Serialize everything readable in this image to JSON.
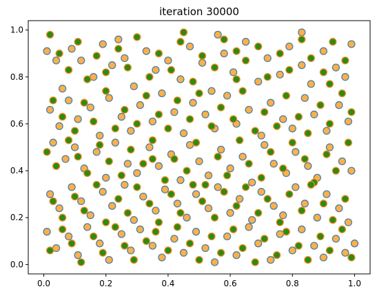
{
  "chart_data": {
    "type": "scatter",
    "title": "iteration 30000",
    "xlabel": "",
    "ylabel": "",
    "xlim": [
      -0.05,
      1.05
    ],
    "ylim": [
      -0.04,
      1.04
    ],
    "xticks": [
      0.0,
      0.2,
      0.4,
      0.6,
      0.8,
      1.0
    ],
    "yticks": [
      0.0,
      0.2,
      0.4,
      0.6,
      0.8,
      1.0
    ],
    "xtick_labels": [
      "0.0",
      "0.2",
      "0.4",
      "0.6",
      "0.8",
      "1.0"
    ],
    "ytick_labels": [
      "0.0",
      "0.2",
      "0.4",
      "0.6",
      "0.8",
      "1.0"
    ],
    "grid": false,
    "series": [
      {
        "marker_face": "#fbb04b",
        "marker_edge": "#4e7fa0",
        "points": [
          [
            0.01,
            0.91
          ],
          [
            0.04,
            0.87
          ],
          [
            0.06,
            0.75
          ],
          [
            0.09,
            0.92
          ],
          [
            0.12,
            0.87
          ],
          [
            0.16,
            0.8
          ],
          [
            0.19,
            0.94
          ],
          [
            0.22,
            0.85
          ],
          [
            0.26,
            0.88
          ],
          [
            0.29,
            0.76
          ],
          [
            0.33,
            0.91
          ],
          [
            0.36,
            0.83
          ],
          [
            0.4,
            0.87
          ],
          [
            0.44,
            0.79
          ],
          [
            0.47,
            0.93
          ],
          [
            0.51,
            0.86
          ],
          [
            0.54,
            0.74
          ],
          [
            0.58,
            0.9
          ],
          [
            0.61,
            0.82
          ],
          [
            0.65,
            0.95
          ],
          [
            0.69,
            0.78
          ],
          [
            0.72,
            0.88
          ],
          [
            0.76,
            0.81
          ],
          [
            0.79,
            0.93
          ],
          [
            0.83,
            0.85
          ],
          [
            0.86,
            0.77
          ],
          [
            0.9,
            0.91
          ],
          [
            0.94,
            0.84
          ],
          [
            0.97,
            0.8
          ],
          [
            0.99,
            0.94
          ],
          [
            0.02,
            0.66
          ],
          [
            0.05,
            0.59
          ],
          [
            0.08,
            0.7
          ],
          [
            0.11,
            0.62
          ],
          [
            0.15,
            0.67
          ],
          [
            0.18,
            0.55
          ],
          [
            0.21,
            0.71
          ],
          [
            0.25,
            0.63
          ],
          [
            0.28,
            0.57
          ],
          [
            0.31,
            0.68
          ],
          [
            0.35,
            0.61
          ],
          [
            0.38,
            0.73
          ],
          [
            0.42,
            0.65
          ],
          [
            0.45,
            0.56
          ],
          [
            0.48,
            0.69
          ],
          [
            0.52,
            0.64
          ],
          [
            0.55,
            0.58
          ],
          [
            0.59,
            0.72
          ],
          [
            0.62,
            0.6
          ],
          [
            0.66,
            0.66
          ],
          [
            0.7,
            0.55
          ],
          [
            0.73,
            0.69
          ],
          [
            0.77,
            0.62
          ],
          [
            0.8,
            0.58
          ],
          [
            0.84,
            0.71
          ],
          [
            0.87,
            0.64
          ],
          [
            0.91,
            0.57
          ],
          [
            0.95,
            0.68
          ],
          [
            0.98,
            0.61
          ],
          [
            0.03,
            0.52
          ],
          [
            0.07,
            0.45
          ],
          [
            0.1,
            0.5
          ],
          [
            0.13,
            0.41
          ],
          [
            0.17,
            0.48
          ],
          [
            0.2,
            0.37
          ],
          [
            0.23,
            0.52
          ],
          [
            0.27,
            0.43
          ],
          [
            0.3,
            0.39
          ],
          [
            0.34,
            0.5
          ],
          [
            0.37,
            0.42
          ],
          [
            0.41,
            0.47
          ],
          [
            0.44,
            0.36
          ],
          [
            0.47,
            0.51
          ],
          [
            0.5,
            0.44
          ],
          [
            0.53,
            0.38
          ],
          [
            0.57,
            0.49
          ],
          [
            0.6,
            0.41
          ],
          [
            0.64,
            0.46
          ],
          [
            0.67,
            0.35
          ],
          [
            0.71,
            0.51
          ],
          [
            0.74,
            0.43
          ],
          [
            0.78,
            0.39
          ],
          [
            0.81,
            0.48
          ],
          [
            0.85,
            0.42
          ],
          [
            0.88,
            0.37
          ],
          [
            0.92,
            0.5
          ],
          [
            0.96,
            0.44
          ],
          [
            0.99,
            0.4
          ],
          [
            0.02,
            0.3
          ],
          [
            0.05,
            0.24
          ],
          [
            0.09,
            0.33
          ],
          [
            0.12,
            0.27
          ],
          [
            0.15,
            0.21
          ],
          [
            0.19,
            0.31
          ],
          [
            0.22,
            0.25
          ],
          [
            0.26,
            0.34
          ],
          [
            0.29,
            0.19
          ],
          [
            0.32,
            0.29
          ],
          [
            0.36,
            0.23
          ],
          [
            0.39,
            0.32
          ],
          [
            0.43,
            0.26
          ],
          [
            0.46,
            0.2
          ],
          [
            0.49,
            0.3
          ],
          [
            0.53,
            0.24
          ],
          [
            0.56,
            0.33
          ],
          [
            0.6,
            0.22
          ],
          [
            0.63,
            0.28
          ],
          [
            0.67,
            0.19
          ],
          [
            0.7,
            0.31
          ],
          [
            0.74,
            0.25
          ],
          [
            0.77,
            0.21
          ],
          [
            0.81,
            0.33
          ],
          [
            0.84,
            0.26
          ],
          [
            0.88,
            0.2
          ],
          [
            0.91,
            0.3
          ],
          [
            0.95,
            0.24
          ],
          [
            0.98,
            0.18
          ],
          [
            0.01,
            0.14
          ],
          [
            0.04,
            0.07
          ],
          [
            0.08,
            0.12
          ],
          [
            0.11,
            0.04
          ],
          [
            0.14,
            0.16
          ],
          [
            0.18,
            0.09
          ],
          [
            0.21,
            0.02
          ],
          [
            0.25,
            0.13
          ],
          [
            0.28,
            0.06
          ],
          [
            0.31,
            0.15
          ],
          [
            0.35,
            0.08
          ],
          [
            0.38,
            0.03
          ],
          [
            0.42,
            0.11
          ],
          [
            0.45,
            0.05
          ],
          [
            0.49,
            0.14
          ],
          [
            0.52,
            0.07
          ],
          [
            0.55,
            0.01
          ],
          [
            0.59,
            0.12
          ],
          [
            0.62,
            0.04
          ],
          [
            0.66,
            0.16
          ],
          [
            0.69,
            0.09
          ],
          [
            0.73,
            0.02
          ],
          [
            0.76,
            0.13
          ],
          [
            0.8,
            0.06
          ],
          [
            0.83,
            0.15
          ],
          [
            0.87,
            0.08
          ],
          [
            0.9,
            0.03
          ],
          [
            0.94,
            0.11
          ],
          [
            0.97,
            0.05
          ],
          [
            1.0,
            0.09
          ],
          [
            0.24,
            0.96
          ],
          [
            0.56,
            0.98
          ],
          [
            0.83,
            0.99
          ]
        ]
      },
      {
        "marker_face": "#2e8b12",
        "marker_edge": "#f28c28",
        "points": [
          [
            0.02,
            0.98
          ],
          [
            0.05,
            0.9
          ],
          [
            0.08,
            0.83
          ],
          [
            0.11,
            0.95
          ],
          [
            0.14,
            0.79
          ],
          [
            0.17,
            0.89
          ],
          [
            0.2,
            0.82
          ],
          [
            0.24,
            0.92
          ],
          [
            0.27,
            0.84
          ],
          [
            0.3,
            0.97
          ],
          [
            0.34,
            0.8
          ],
          [
            0.37,
            0.9
          ],
          [
            0.41,
            0.83
          ],
          [
            0.44,
            0.95
          ],
          [
            0.48,
            0.78
          ],
          [
            0.51,
            0.89
          ],
          [
            0.55,
            0.84
          ],
          [
            0.58,
            0.96
          ],
          [
            0.62,
            0.79
          ],
          [
            0.65,
            0.87
          ],
          [
            0.69,
            0.93
          ],
          [
            0.72,
            0.8
          ],
          [
            0.76,
            0.9
          ],
          [
            0.79,
            0.83
          ],
          [
            0.83,
            0.96
          ],
          [
            0.86,
            0.88
          ],
          [
            0.9,
            0.82
          ],
          [
            0.93,
            0.95
          ],
          [
            0.97,
            0.87
          ],
          [
            0.03,
            0.7
          ],
          [
            0.06,
            0.63
          ],
          [
            0.1,
            0.57
          ],
          [
            0.13,
            0.69
          ],
          [
            0.16,
            0.61
          ],
          [
            0.2,
            0.74
          ],
          [
            0.23,
            0.58
          ],
          [
            0.26,
            0.66
          ],
          [
            0.3,
            0.6
          ],
          [
            0.33,
            0.72
          ],
          [
            0.37,
            0.64
          ],
          [
            0.4,
            0.58
          ],
          [
            0.43,
            0.7
          ],
          [
            0.47,
            0.62
          ],
          [
            0.5,
            0.73
          ],
          [
            0.54,
            0.59
          ],
          [
            0.57,
            0.67
          ],
          [
            0.61,
            0.62
          ],
          [
            0.64,
            0.74
          ],
          [
            0.68,
            0.57
          ],
          [
            0.71,
            0.65
          ],
          [
            0.75,
            0.59
          ],
          [
            0.78,
            0.72
          ],
          [
            0.82,
            0.63
          ],
          [
            0.85,
            0.56
          ],
          [
            0.89,
            0.68
          ],
          [
            0.92,
            0.6
          ],
          [
            0.96,
            0.73
          ],
          [
            0.99,
            0.65
          ],
          [
            0.01,
            0.48
          ],
          [
            0.04,
            0.42
          ],
          [
            0.08,
            0.53
          ],
          [
            0.11,
            0.46
          ],
          [
            0.14,
            0.39
          ],
          [
            0.18,
            0.51
          ],
          [
            0.21,
            0.44
          ],
          [
            0.25,
            0.38
          ],
          [
            0.28,
            0.49
          ],
          [
            0.32,
            0.43
          ],
          [
            0.35,
            0.53
          ],
          [
            0.39,
            0.36
          ],
          [
            0.42,
            0.45
          ],
          [
            0.46,
            0.4
          ],
          [
            0.49,
            0.52
          ],
          [
            0.52,
            0.34
          ],
          [
            0.56,
            0.46
          ],
          [
            0.59,
            0.38
          ],
          [
            0.63,
            0.53
          ],
          [
            0.66,
            0.43
          ],
          [
            0.7,
            0.37
          ],
          [
            0.73,
            0.48
          ],
          [
            0.77,
            0.41
          ],
          [
            0.8,
            0.52
          ],
          [
            0.84,
            0.45
          ],
          [
            0.87,
            0.35
          ],
          [
            0.91,
            0.47
          ],
          [
            0.94,
            0.4
          ],
          [
            0.98,
            0.52
          ],
          [
            0.03,
            0.27
          ],
          [
            0.06,
            0.2
          ],
          [
            0.1,
            0.29
          ],
          [
            0.13,
            0.23
          ],
          [
            0.17,
            0.34
          ],
          [
            0.2,
            0.18
          ],
          [
            0.24,
            0.28
          ],
          [
            0.27,
            0.22
          ],
          [
            0.3,
            0.33
          ],
          [
            0.34,
            0.26
          ],
          [
            0.37,
            0.18
          ],
          [
            0.41,
            0.3
          ],
          [
            0.44,
            0.22
          ],
          [
            0.48,
            0.34
          ],
          [
            0.51,
            0.27
          ],
          [
            0.55,
            0.2
          ],
          [
            0.58,
            0.31
          ],
          [
            0.62,
            0.25
          ],
          [
            0.65,
            0.33
          ],
          [
            0.69,
            0.22
          ],
          [
            0.72,
            0.28
          ],
          [
            0.76,
            0.18
          ],
          [
            0.79,
            0.3
          ],
          [
            0.83,
            0.23
          ],
          [
            0.86,
            0.34
          ],
          [
            0.9,
            0.26
          ],
          [
            0.93,
            0.19
          ],
          [
            0.97,
            0.28
          ],
          [
            0.02,
            0.06
          ],
          [
            0.06,
            0.15
          ],
          [
            0.09,
            0.09
          ],
          [
            0.12,
            0.01
          ],
          [
            0.16,
            0.12
          ],
          [
            0.19,
            0.05
          ],
          [
            0.23,
            0.16
          ],
          [
            0.26,
            0.08
          ],
          [
            0.29,
            0.02
          ],
          [
            0.33,
            0.1
          ],
          [
            0.36,
            0.14
          ],
          [
            0.4,
            0.06
          ],
          [
            0.43,
            0.16
          ],
          [
            0.47,
            0.09
          ],
          [
            0.5,
            0.02
          ],
          [
            0.54,
            0.12
          ],
          [
            0.57,
            0.05
          ],
          [
            0.61,
            0.15
          ],
          [
            0.64,
            0.07
          ],
          [
            0.68,
            0.01
          ],
          [
            0.71,
            0.11
          ],
          [
            0.75,
            0.04
          ],
          [
            0.78,
            0.14
          ],
          [
            0.82,
            0.08
          ],
          [
            0.85,
            0.02
          ],
          [
            0.89,
            0.12
          ],
          [
            0.92,
            0.06
          ],
          [
            0.96,
            0.15
          ],
          [
            0.99,
            0.03
          ],
          [
            0.45,
            0.99
          ],
          [
            0.62,
            0.91
          ],
          [
            0.35,
            0.45
          ],
          [
            0.92,
            0.77
          ]
        ]
      }
    ]
  }
}
